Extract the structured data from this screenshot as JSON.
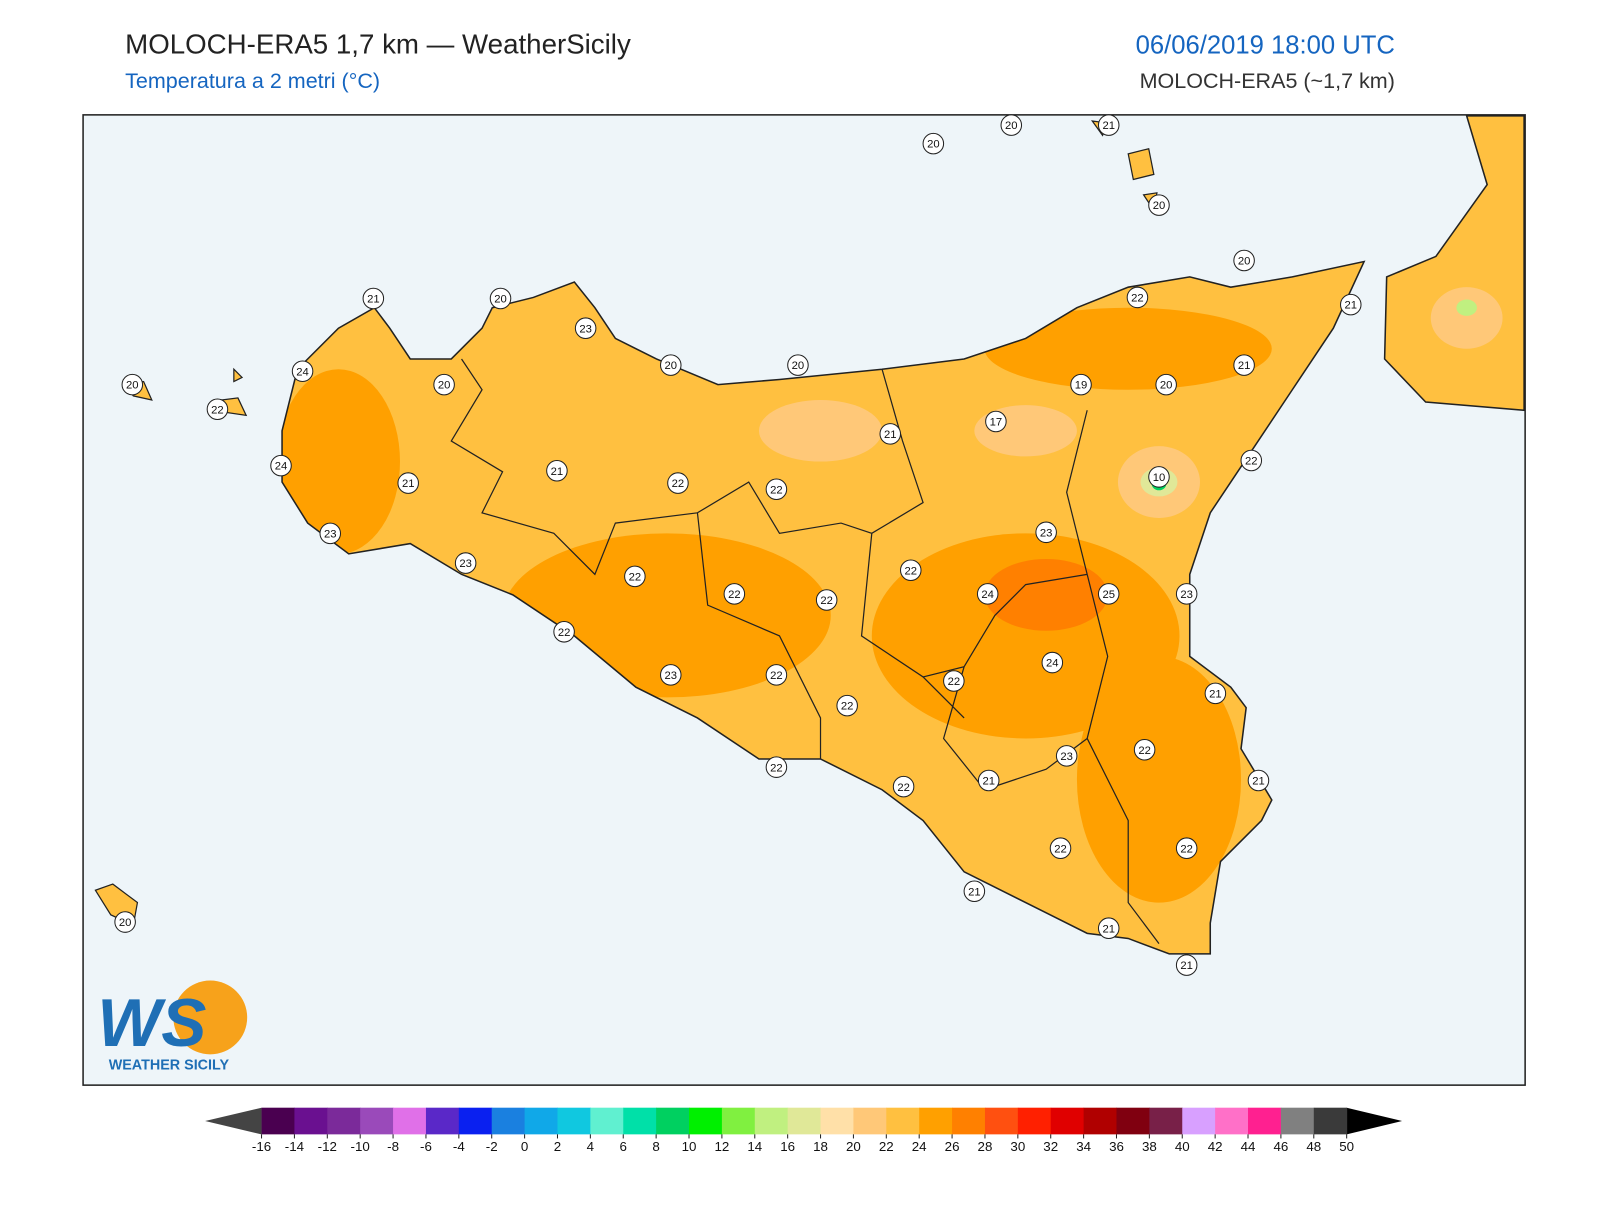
{
  "header": {
    "title": "MOLOCH-ERA5 1,7 km — WeatherSicily",
    "subtitle": "Temperatura a 2 metri (°C)",
    "date": "06/06/2019 18:00 UTC",
    "model": "MOLOCH-ERA5 (~1,7 km)"
  },
  "logo": {
    "mark": "WS",
    "name": "WEATHER SICILY"
  },
  "stations": [
    20,
    20,
    21,
    20,
    20,
    22,
    21,
    21,
    20,
    23,
    20,
    20,
    21,
    19,
    20,
    20,
    24,
    20,
    22,
    17,
    21,
    22,
    24,
    10,
    21,
    21,
    22,
    22,
    23,
    23,
    23,
    22,
    22,
    22,
    22,
    24,
    25,
    23,
    22,
    24,
    23,
    22,
    22,
    21,
    22,
    23,
    22,
    22,
    21,
    22,
    21,
    22,
    22,
    21,
    21,
    21,
    20
  ],
  "colorbar": {
    "ticks": [
      -16,
      -14,
      -12,
      -10,
      -8,
      -6,
      -4,
      -2,
      0,
      2,
      4,
      6,
      8,
      10,
      12,
      14,
      16,
      18,
      20,
      22,
      24,
      26,
      28,
      30,
      32,
      34,
      36,
      38,
      40,
      42,
      44,
      46,
      48,
      50
    ],
    "colors": [
      "#4a0050",
      "#6a1090",
      "#7b2a9a",
      "#9a4aba",
      "#e070e8",
      "#5a28c8",
      "#0a20f0",
      "#1a80e0",
      "#10a8e8",
      "#10c8e0",
      "#60f0d0",
      "#00e0a8",
      "#00d060",
      "#00f000",
      "#80f040",
      "#c0f080",
      "#e0e898",
      "#ffe0a8",
      "#ffc878",
      "#ffc040",
      "#ffa000",
      "#ff8000",
      "#ff5010",
      "#ff2000",
      "#e00000",
      "#b00000",
      "#800010",
      "#782048",
      "#d8a0ff",
      "#ff70c8",
      "#ff2090",
      "#808080",
      "#3a3a3a"
    ],
    "under": "#444444",
    "over": "#000000"
  }
}
